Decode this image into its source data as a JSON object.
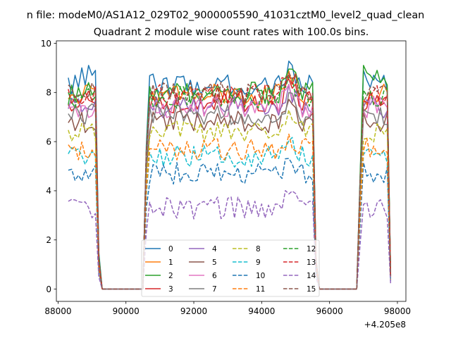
{
  "figure": {
    "suptitle": "n file: modeM0/AS1A12_029T02_9000005590_41031cztM0_level2_quad_clean",
    "offset_label": "+4.205e8"
  },
  "chart_data": {
    "type": "line",
    "title": "Quadrant 2 module wise count rates with 100.0s bins.",
    "xlabel": "",
    "ylabel": "",
    "xlim": [
      87950,
      98250
    ],
    "ylim": [
      -0.5,
      10.1
    ],
    "x_offset": 420500000,
    "xticks": [
      88000,
      90000,
      92000,
      94000,
      96000,
      98000
    ],
    "xtick_labels": [
      "88000",
      "90000",
      "92000",
      "94000",
      "96000",
      "98000"
    ],
    "yticks": [
      0,
      2,
      4,
      6,
      8,
      10
    ],
    "ytick_labels": [
      "0",
      "2",
      "4",
      "6",
      "8",
      "10"
    ],
    "grid": false,
    "legend_placement": "lower-center",
    "legend_columns": 4,
    "segments": [
      {
        "x_start": 88300,
        "x_end": 89300,
        "x_step": 100
      },
      {
        "x_start": 90500,
        "x_end": 95700,
        "x_step": 100
      },
      {
        "x_start": 96800,
        "x_end": 97800,
        "x_step": 100
      }
    ],
    "series": [
      {
        "name": "0",
        "color": "#1f77b4",
        "dash": "solid",
        "level": 8.3,
        "segments": [
          [
            8.6,
            7.9,
            8.7,
            8.2,
            9.0,
            8.3,
            9.1,
            8.7,
            8.9,
            1.5,
            0.0
          ],
          null,
          [
            0.0,
            4.5,
            8.9,
            8.5,
            8.2,
            8.7,
            8.5,
            8.4,
            8.7,
            8.1,
            0.7
          ]
        ]
      },
      {
        "name": "1",
        "color": "#ff7f0e",
        "dash": "solid",
        "level": 7.9
      },
      {
        "name": "2",
        "color": "#2ca02c",
        "dash": "solid",
        "level": 8.0,
        "segments": [
          [
            7.5,
            8.3,
            7.6,
            8.2,
            7.8,
            8.0,
            8.4,
            7.9,
            8.1,
            1.4,
            0.0
          ],
          null,
          [
            0.0,
            4.6,
            9.1,
            8.8,
            8.7,
            8.5,
            8.9,
            8.4,
            8.6,
            8.3,
            0.6
          ]
        ]
      },
      {
        "name": "3",
        "color": "#d62728",
        "dash": "solid",
        "level": 7.6
      },
      {
        "name": "4",
        "color": "#9467bd",
        "dash": "solid",
        "level": 7.4
      },
      {
        "name": "5",
        "color": "#8c564b",
        "dash": "solid",
        "level": 6.8
      },
      {
        "name": "6",
        "color": "#e377c2",
        "dash": "solid",
        "level": 7.4
      },
      {
        "name": "7",
        "color": "#7f7f7f",
        "dash": "solid",
        "level": 7.1
      },
      {
        "name": "8",
        "color": "#bcbd22",
        "dash": "dashed",
        "level": 6.4
      },
      {
        "name": "9",
        "color": "#17becf",
        "dash": "dashed",
        "level": 5.4
      },
      {
        "name": "10",
        "color": "#1f77b4",
        "dash": "dashed",
        "level": 4.7
      },
      {
        "name": "11",
        "color": "#ff7f0e",
        "dash": "dashed",
        "level": 5.7
      },
      {
        "name": "12",
        "color": "#2ca02c",
        "dash": "dashed",
        "level": 7.8
      },
      {
        "name": "13",
        "color": "#d62728",
        "dash": "dashed",
        "level": 7.9
      },
      {
        "name": "14",
        "color": "#9467bd",
        "dash": "dashed",
        "level": 3.3
      },
      {
        "name": "15",
        "color": "#8c564b",
        "dash": "dashed",
        "level": 8.0
      }
    ]
  }
}
